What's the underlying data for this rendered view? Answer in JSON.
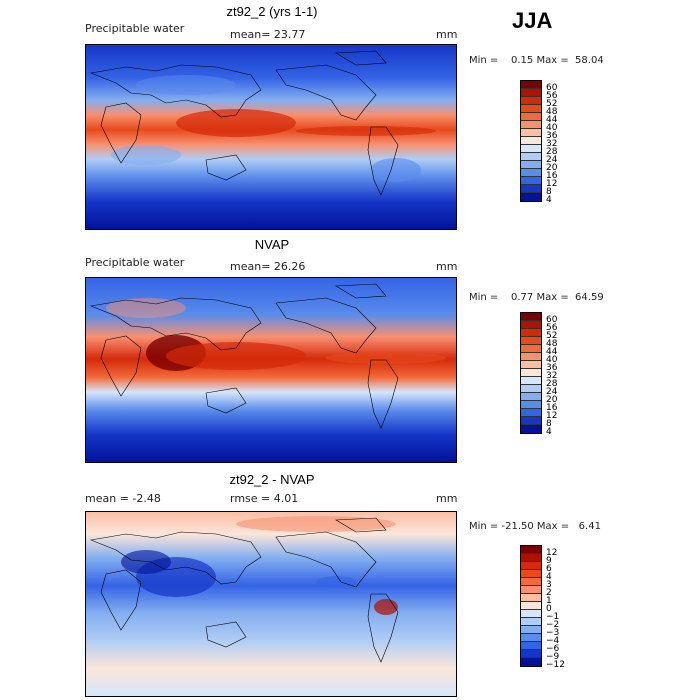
{
  "season": "JJA",
  "panels": [
    {
      "title": "zt92_2 (yrs 1-1)",
      "left_label": "Precipitable water",
      "center_label": "mean=  23.77",
      "units": "mm",
      "minmax": "Min =    0.15 Max =  58.04",
      "colorbar": [
        "60",
        "56",
        "52",
        "48",
        "44",
        "40",
        "36",
        "32",
        "28",
        "24",
        "20",
        "16",
        "12",
        "8",
        "4"
      ]
    },
    {
      "title": "NVAP",
      "left_label": "Precipitable water",
      "center_label": "mean=  26.26",
      "units": "mm",
      "minmax": "Min =    0.77 Max =  64.59",
      "colorbar": [
        "60",
        "56",
        "52",
        "48",
        "44",
        "40",
        "36",
        "32",
        "28",
        "24",
        "20",
        "16",
        "12",
        "8",
        "4"
      ]
    },
    {
      "title": "zt92_2 - NVAP",
      "left_label": "mean =   -2.48",
      "center_label": "rmse =    4.01",
      "units": "mm",
      "minmax": "Min = -21.50 Max =   6.41",
      "colorbar": [
        "12",
        "9",
        "6",
        "4",
        "3",
        "2",
        "1",
        "0",
        "−1",
        "−2",
        "−3",
        "−4",
        "−6",
        "−9",
        "−12"
      ]
    }
  ],
  "colors": {
    "abs_scale": [
      "#7a0000",
      "#b01000",
      "#d42a0a",
      "#e84a1a",
      "#f36a3a",
      "#f89070",
      "#fbbfa5",
      "#fbe6da",
      "#d6e6fb",
      "#b0cdf5",
      "#84aef0",
      "#5a8ceb",
      "#3464e6",
      "#1536c8",
      "#00129a"
    ],
    "diff_scale": [
      "#7a0000",
      "#b01000",
      "#d42a0a",
      "#e84a1a",
      "#f36a3a",
      "#f89070",
      "#fbbfa5",
      "#fbe6da",
      "#d6e6fb",
      "#b0cdf5",
      "#84aef0",
      "#5a8ceb",
      "#3464e6",
      "#1536c8",
      "#00129a"
    ]
  }
}
